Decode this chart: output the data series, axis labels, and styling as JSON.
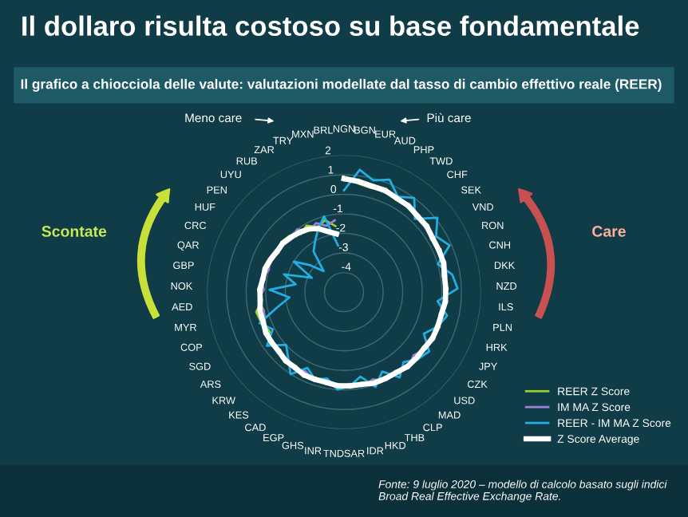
{
  "chart_data": {
    "type": "radar",
    "title": "Il dollaro risulta costoso su base fondamentale",
    "subtitle": "Il grafico a chiocciola delle valute: valutazioni modellate dal tasso di cambio effettivo reale (REER)",
    "categories": [
      "NGN",
      "BGN",
      "EUR",
      "AUD",
      "PHP",
      "TWD",
      "CHF",
      "SEK",
      "VND",
      "RON",
      "CNH",
      "DKK",
      "NZD",
      "ILS",
      "PLN",
      "HRK",
      "JPY",
      "CZK",
      "USD",
      "MAD",
      "CLP",
      "THB",
      "HKD",
      "IDR",
      "SAR",
      "TND",
      "INR",
      "GHS",
      "EGP",
      "CAD",
      "KES",
      "KRW",
      "ARS",
      "SGD",
      "COP",
      "MYR",
      "AED",
      "NOK",
      "GBP",
      "QAR",
      "CRC",
      "HUF",
      "PEN",
      "UYU",
      "RUB",
      "ZAR",
      "TRY",
      "MXN",
      "BRL"
    ],
    "series": [
      {
        "name": "REER Z Score",
        "color": "#9acd32",
        "values": [
          0.9,
          0.6,
          0.5,
          0.7,
          0.4,
          0.6,
          0.3,
          0.5,
          0.2,
          0.4,
          0.3,
          0.1,
          0.3,
          0.1,
          0.2,
          0.0,
          0.2,
          -0.1,
          0.1,
          -0.1,
          0.0,
          -0.2,
          0.0,
          -0.3,
          -0.1,
          -0.3,
          -0.2,
          -0.4,
          -0.2,
          -0.5,
          -0.3,
          -0.6,
          -0.4,
          -0.7,
          -0.5,
          -0.4,
          -0.8,
          -0.6,
          -0.9,
          -0.7,
          -0.8,
          -1.1,
          -0.9,
          -1.0,
          -1.3,
          -1.1,
          -1.4,
          -1.2,
          -1.6
        ]
      },
      {
        "name": "IM MA Z Score",
        "color": "#a07fd8",
        "values": [
          0.7,
          0.8,
          0.6,
          0.5,
          0.6,
          0.4,
          0.5,
          0.3,
          0.4,
          0.2,
          0.4,
          0.3,
          0.1,
          0.3,
          0.0,
          0.2,
          0.0,
          0.1,
          -0.2,
          0.1,
          -0.2,
          0.0,
          -0.3,
          -0.1,
          -0.3,
          -0.1,
          -0.4,
          -0.2,
          -0.5,
          -0.3,
          -0.5,
          -0.4,
          -0.6,
          -0.4,
          -0.7,
          -0.8,
          -0.6,
          -0.9,
          -0.7,
          -1.0,
          -0.8,
          -0.9,
          -1.1,
          -1.2,
          -1.0,
          -1.4,
          -1.2,
          -1.5,
          -1.3
        ]
      },
      {
        "name": "REER - IM MA Z Score",
        "color": "#22aee0",
        "values": [
          0.2,
          1.3,
          0.9,
          1.2,
          0.6,
          1.0,
          0.2,
          1.1,
          0.5,
          0.9,
          0.0,
          0.6,
          0.8,
          -0.2,
          0.4,
          0.1,
          -0.4,
          0.3,
          0.1,
          -0.3,
          0.2,
          -0.5,
          0.1,
          -0.6,
          -0.2,
          0.0,
          -0.5,
          -0.3,
          -0.7,
          0.0,
          -0.6,
          -1.0,
          -0.2,
          -0.9,
          -0.4,
          -1.5,
          -2.2,
          -1.2,
          -2.5,
          -1.8,
          -3.2,
          -2.0,
          -2.8,
          -3.5,
          -2.4,
          -2.0,
          -1.5,
          -1.0,
          -2.6
        ]
      },
      {
        "name": "Z Score Average",
        "color": "#ffffff",
        "values": [
          0.8,
          0.7,
          0.6,
          0.6,
          0.5,
          0.5,
          0.4,
          0.4,
          0.3,
          0.3,
          0.3,
          0.2,
          0.2,
          0.2,
          0.1,
          0.1,
          0.1,
          0.0,
          0.0,
          0.0,
          -0.1,
          -0.1,
          -0.1,
          -0.2,
          -0.2,
          -0.2,
          -0.3,
          -0.3,
          -0.3,
          -0.4,
          -0.4,
          -0.5,
          -0.5,
          -0.5,
          -0.6,
          -0.6,
          -0.7,
          -0.7,
          -0.8,
          -0.8,
          -0.9,
          -1.0,
          -1.0,
          -1.1,
          -1.2,
          -1.3,
          -1.5,
          -1.8,
          -2.0
        ]
      }
    ],
    "ylim": [
      -5,
      2
    ],
    "yticks": [
      -4,
      -3,
      -2,
      -1,
      0,
      1,
      2
    ],
    "grid": true,
    "legend": "bottom right",
    "marker": "none",
    "line_style": "solid",
    "annotations": [
      "Meno care",
      "Più care",
      "Scontate",
      "Care",
      "Fonte: 9 luglio 2020 – modello di calcolo basato sugli indici Broad Real Effective Exchange Rate."
    ]
  }
}
